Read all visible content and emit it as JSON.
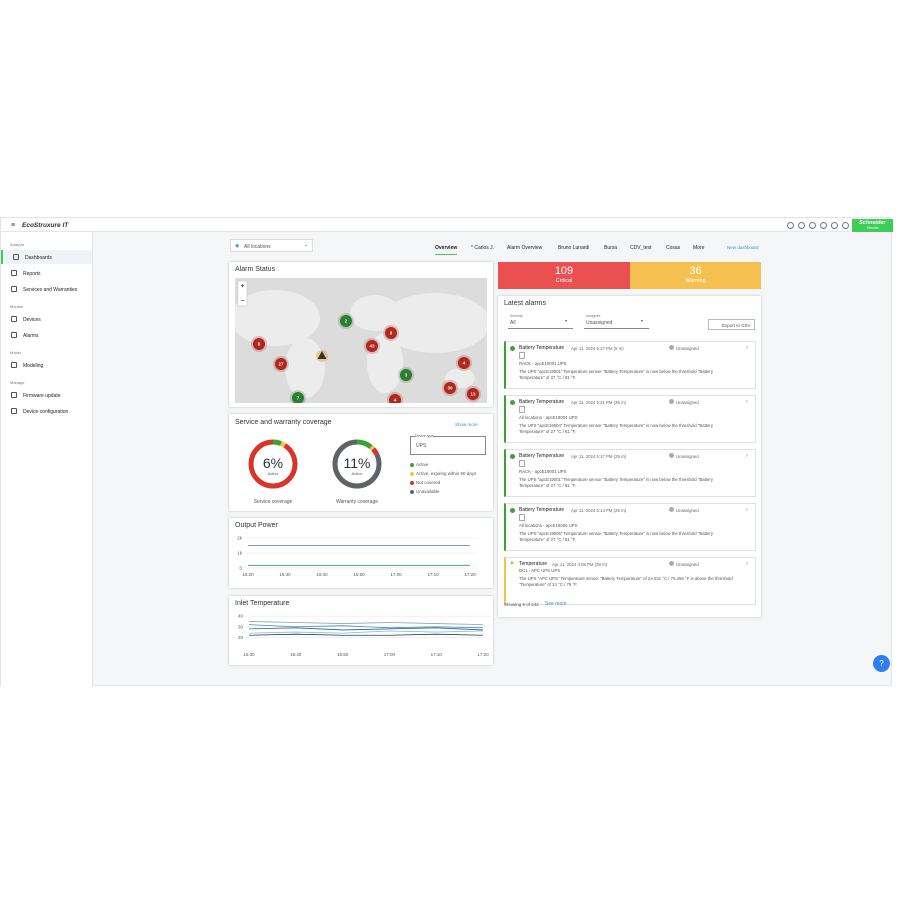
{
  "header": {
    "logo": "EcoStruxure IT",
    "brand": "Schneider",
    "brand_sub": "Electric"
  },
  "sidebar": [
    {
      "title": "Analyze",
      "items": [
        "Dashboards",
        "Reports",
        "Services and Warranties"
      ]
    },
    {
      "title": "Monitor",
      "items": [
        "Devices",
        "Alarms"
      ]
    },
    {
      "title": "Model",
      "items": [
        "Modeling"
      ]
    },
    {
      "title": "Manage",
      "items": [
        "Firmware update",
        "Device configuration"
      ]
    }
  ],
  "location_filter": "All locations",
  "tabs": [
    "Overview",
    "* Carlos J.",
    "Alarm Overview",
    "Bruno Lunardi",
    "Bursa",
    "CDV_test",
    "Cosas",
    "More"
  ],
  "new_dashboard": "New dashboard",
  "alarm_status": {
    "title": "Alarm Status",
    "zoom": [
      "+",
      "−"
    ],
    "clusters": [
      {
        "count": 8,
        "status": "critical"
      },
      {
        "count": 27,
        "status": "critical"
      },
      {
        "count": 2,
        "status": "ok"
      },
      {
        "count": 8,
        "status": "critical"
      },
      {
        "count": 43,
        "status": "critical"
      },
      {
        "count": 3,
        "status": "ok"
      },
      {
        "count": 4,
        "status": "critical"
      },
      {
        "count": 30,
        "status": "critical"
      },
      {
        "count": 13,
        "status": "critical"
      },
      {
        "count": 7,
        "status": "ok"
      },
      {
        "count": 4,
        "status": "critical"
      }
    ]
  },
  "coverage": {
    "title": "Service and warranty coverage",
    "show_more": "Show more",
    "device_type_label": "Device type",
    "device_type": "UPS",
    "legend": [
      {
        "name": "Active",
        "color": "#3aa335"
      },
      {
        "name": "Active, expiring within 90 days",
        "color": "#f2c94c"
      },
      {
        "name": "Not covered",
        "color": "#d9342b"
      },
      {
        "name": "Unavailable",
        "color": "#5f6368"
      }
    ],
    "donuts": [
      {
        "label": "6%",
        "sub": "Active",
        "caption": "Service coverage",
        "values": [
          6,
          3,
          91,
          0
        ]
      },
      {
        "label": "11%",
        "sub": "Active",
        "caption": "Warranty coverage",
        "values": [
          11,
          2,
          5,
          82
        ]
      }
    ]
  },
  "output_power": {
    "type": "line",
    "title": "Output Power",
    "categories": [
      "16:20",
      "16:30",
      "16:40",
      "16:50",
      "17:00",
      "17:10",
      "17:20"
    ],
    "ylim": [
      0,
      2000
    ],
    "yticks": [
      0,
      {
        "value": 1000,
        "label": "1k"
      },
      {
        "value": 2000,
        "label": "2k"
      }
    ],
    "series": [
      {
        "color": "#4a7fa8",
        "values": [
          1500,
          1500,
          1500,
          1500,
          1500,
          1500,
          1500
        ]
      },
      {
        "color": "#2e9e6b",
        "values": [
          180,
          180,
          180,
          180,
          180,
          180,
          180
        ]
      }
    ]
  },
  "inlet_temperature": {
    "type": "line",
    "title": "Inlet Temperature",
    "categories": [
      "16:30",
      "16:40",
      "16:50",
      "17:00",
      "17:10",
      "17:20"
    ],
    "ylim": [
      10,
      42
    ],
    "yticks": [
      20,
      30,
      40
    ],
    "series": [
      {
        "color": "#8fa3b8",
        "values": [
          35,
          34,
          33,
          34,
          33,
          32
        ]
      },
      {
        "color": "#4a90c2",
        "values": [
          32,
          30,
          31,
          29,
          30,
          29
        ]
      },
      {
        "color": "#2b5f8a",
        "values": [
          28,
          29,
          27,
          28,
          29,
          27
        ]
      },
      {
        "color": "#76c7d6",
        "values": [
          24,
          25,
          24,
          26,
          25,
          26
        ]
      },
      {
        "color": "#1f3b57",
        "values": [
          22,
          23,
          22,
          22,
          23,
          22
        ]
      }
    ]
  },
  "summary": {
    "critical": 109,
    "critical_label": "Critical",
    "warning": 36,
    "warning_label": "Warning"
  },
  "latest_alarms": {
    "title": "Latest alarms",
    "severity_label": "Severity",
    "severity": "All",
    "assignee_label": "Assignee",
    "assignee": "Unassigned",
    "export": "Export to CSV",
    "items": [
      {
        "status": "cleared",
        "title": "Battery Temperature",
        "time": "Apr 11, 2024 5:27 PM (5 m)",
        "assignee": "Unassigned",
        "device": "RACK - apcE19001 UPS",
        "message": "The UPS \"apcE19001\" Temperature sensor \"Battery Temperature\" is now below the threshold \"Battery Temperature\" of 27 °C / 81 °F."
      },
      {
        "status": "cleared",
        "title": "Battery Temperature",
        "time": "Apr 11, 2024 5:21 PM (35 m)",
        "assignee": "Unassigned",
        "device": "All locations - apcE19004 UPS",
        "message": "The UPS \"apcE19004\" Temperature sensor \"Battery Temperature\" is now below the threshold \"Battery Temperature\" of 27 °C / 81 °F."
      },
      {
        "status": "cleared",
        "title": "Battery Temperature",
        "time": "Apr 11, 2024 5:17 PM (25 m)",
        "assignee": "Unassigned",
        "device": "RACK - apcE19001 UPS",
        "message": "The UPS \"apcE19001\" Temperature sensor \"Battery Temperature\" is now below the threshold \"Battery Temperature\" of 27 °C / 81 °F."
      },
      {
        "status": "cleared",
        "title": "Battery Temperature",
        "time": "Apr 11, 2024 5:14 PM (25 m)",
        "assignee": "Unassigned",
        "device": "All locations - apcE19005 UPS",
        "message": "The UPS \"apcE19005\" Temperature sensor \"Battery Temperature\" is now below the threshold \"Battery Temperature\" of 27 °C / 81 °F."
      },
      {
        "status": "warning",
        "title": "Temperature",
        "time": "Apr 11, 2024 4:08 PM (28 m)",
        "assignee": "Unassigned",
        "device": "DC1 - APC UPS UPS",
        "message": "The UPS \"APC UPS\" Temperature sensor \"Battery Temperature\" of 24.031 °C / 75.256 °F is above the threshold \"Temperature\" of 24 °C / 75 °F."
      }
    ],
    "showing": "Showing 5 of 242",
    "see_more": "See more"
  }
}
